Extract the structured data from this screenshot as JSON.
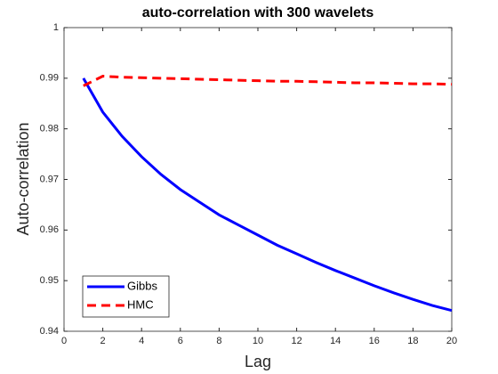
{
  "chart_data": {
    "type": "line",
    "title": "auto-correlation with 300 wavelets",
    "x_label": "Lag",
    "y_label": "Auto-correlation",
    "x": [
      1,
      2,
      3,
      4,
      5,
      6,
      7,
      8,
      9,
      10,
      11,
      12,
      13,
      14,
      15,
      16,
      17,
      18,
      19,
      20
    ],
    "series": [
      {
        "name": "Gibbs",
        "color": "#0000ff",
        "dash": "solid",
        "values": [
          0.99,
          0.9833,
          0.9785,
          0.9745,
          0.971,
          0.968,
          0.9655,
          0.963,
          0.961,
          0.959,
          0.957,
          0.9553,
          0.9536,
          0.952,
          0.9505,
          0.949,
          0.9476,
          0.9463,
          0.9451,
          0.9441
        ]
      },
      {
        "name": "HMC",
        "color": "#ff0000",
        "dash": "dashed",
        "values": [
          0.9885,
          0.9904,
          0.9902,
          0.9901,
          0.99,
          0.9899,
          0.9898,
          0.9897,
          0.9896,
          0.9895,
          0.9894,
          0.9894,
          0.9893,
          0.9892,
          0.9891,
          0.9891,
          0.989,
          0.9889,
          0.9889,
          0.9888
        ]
      }
    ],
    "xlim": [
      0,
      20
    ],
    "xticks": [
      0,
      2,
      4,
      6,
      8,
      10,
      12,
      14,
      16,
      18,
      20
    ],
    "ylim": [
      0.94,
      1
    ],
    "yticks": [
      0.94,
      0.95,
      0.96,
      0.97,
      0.98,
      0.99,
      1
    ],
    "legend": "lower left"
  }
}
